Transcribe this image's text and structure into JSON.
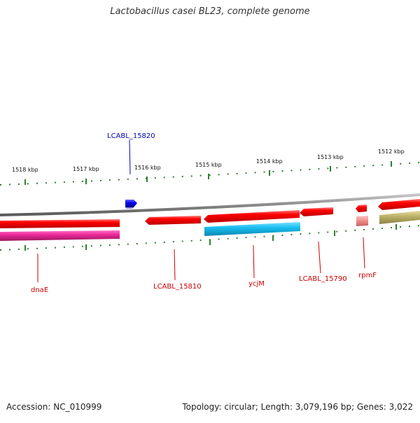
{
  "title": "Lactobacillus casei BL23, complete genome",
  "footer": {
    "accession": "Accession: NC_010999",
    "summary": "Topology: circular; Length: 3,079,196 bp; Genes: 3,022"
  },
  "ticks": [
    "1518 kbp",
    "1517 kbp",
    "1516 kbp",
    "1515 kbp",
    "1514 kbp",
    "1513 kbp",
    "1512 kbp"
  ],
  "labels": {
    "top": "LCABL_15820",
    "dnaE": "dnaE",
    "l15810": "LCABL_15810",
    "ycjM": "ycjM",
    "l15790": "LCABL_15790",
    "rpmF": "rpmF"
  },
  "colors": {
    "gene": "#ff0000",
    "cds_magenta": "#ee2a9a",
    "cds_cyan": "#19bff0",
    "cds_olive": "#bdb36a",
    "rna_pink": "#f08a8a",
    "plus_strand": "#0000ee",
    "backbone": "#8a8a8a",
    "tick": "#2f7f2f",
    "label_red": "#cc0000",
    "label_blue": "#0000bb"
  }
}
